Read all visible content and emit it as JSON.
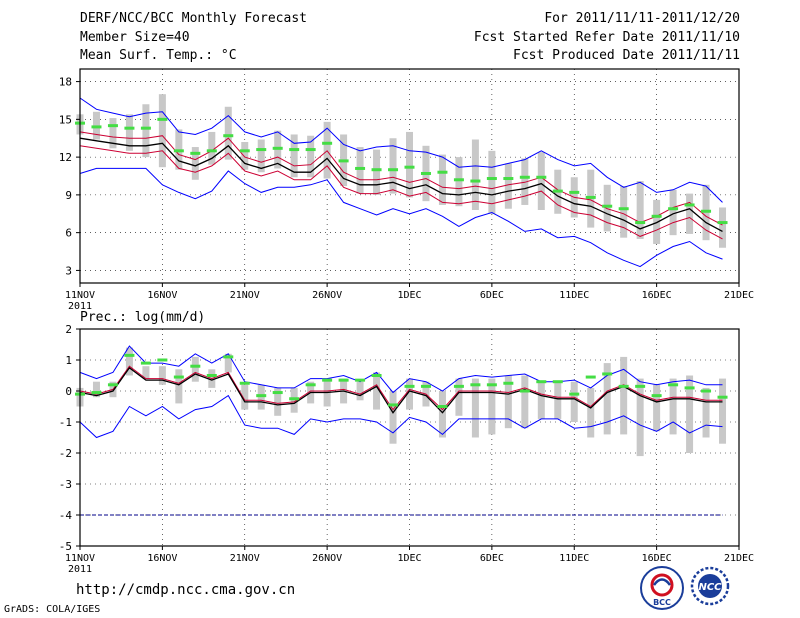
{
  "header": {
    "title": "DERF/NCC/BCC Monthly Forecast",
    "member_size": "Member Size=40",
    "variable": "Mean Surf. Temp.: °C",
    "period": "For 2011/11/11-2011/12/20",
    "start_date": "Fcst Started Refer Date 2011/11/10",
    "produced_date": "Fcst Produced Date 2011/11/11"
  },
  "footer": {
    "url": "http://cmdp.ncc.cma.gov.cn",
    "grads_credit": "GrADS: COLA/IGES",
    "logo_left_text": "BCC",
    "logo_right_text": "NCC"
  },
  "colors": {
    "bound": "#0000ff",
    "inner": "#cc0033",
    "mean": "#000000",
    "median": "#44dd44",
    "spread": "#c8c8c8",
    "reference": "#000088"
  },
  "chart_data": [
    {
      "type": "line",
      "title": "",
      "ylabel": "Mean Surf. Temp.: °C",
      "ylim": [
        2,
        19
      ],
      "yticks": [
        3,
        6,
        9,
        12,
        15,
        18
      ],
      "xlim": [
        0,
        40
      ],
      "xticks": [
        {
          "pos": 0,
          "label": "11NOV",
          "sub": "2011"
        },
        {
          "pos": 5,
          "label": "16NOV",
          "sub": ""
        },
        {
          "pos": 10,
          "label": "21NOV",
          "sub": ""
        },
        {
          "pos": 15,
          "label": "26NOV",
          "sub": ""
        },
        {
          "pos": 20,
          "label": "1DEC",
          "sub": ""
        },
        {
          "pos": 25,
          "label": "6DEC",
          "sub": ""
        },
        {
          "pos": 30,
          "label": "11DEC",
          "sub": ""
        },
        {
          "pos": 35,
          "label": "16DEC",
          "sub": ""
        },
        {
          "pos": 40,
          "label": "21DEC",
          "sub": ""
        }
      ],
      "grid": true,
      "x": [
        0,
        1,
        2,
        3,
        4,
        5,
        6,
        7,
        8,
        9,
        10,
        11,
        12,
        13,
        14,
        15,
        16,
        17,
        18,
        19,
        20,
        21,
        22,
        23,
        24,
        25,
        26,
        27,
        28,
        29,
        30,
        31,
        32,
        33,
        34,
        35,
        36,
        37,
        38,
        39
      ],
      "series": [
        {
          "name": "max",
          "values": [
            16.7,
            15.8,
            15.5,
            15.2,
            15.5,
            15.6,
            14.0,
            13.8,
            14.3,
            15.3,
            14.0,
            13.6,
            14.0,
            13.1,
            13.2,
            14.3,
            13.0,
            12.5,
            12.8,
            12.9,
            12.5,
            12.4,
            12.0,
            11.2,
            11.3,
            11.2,
            11.5,
            11.8,
            12.5,
            11.8,
            11.3,
            11.5,
            10.4,
            9.6,
            10.0,
            9.2,
            9.4,
            10.0,
            9.7,
            8.4
          ]
        },
        {
          "name": "upper",
          "values": [
            14.0,
            13.8,
            13.6,
            13.5,
            13.5,
            13.7,
            12.2,
            11.8,
            12.5,
            13.5,
            12.0,
            11.6,
            12.0,
            11.3,
            11.4,
            12.5,
            10.8,
            10.2,
            10.2,
            10.4,
            10.0,
            10.3,
            9.6,
            9.5,
            9.7,
            9.5,
            9.8,
            10.0,
            10.4,
            9.4,
            8.8,
            8.6,
            7.9,
            7.5,
            6.8,
            7.3,
            8.0,
            8.4,
            7.3,
            6.6
          ]
        },
        {
          "name": "mean",
          "values": [
            13.5,
            13.3,
            13.1,
            12.9,
            12.9,
            13.1,
            11.7,
            11.3,
            11.9,
            12.9,
            11.5,
            11.1,
            11.5,
            10.8,
            10.8,
            11.9,
            10.3,
            9.8,
            9.8,
            10.0,
            9.5,
            9.8,
            9.1,
            9.0,
            9.2,
            9.0,
            9.3,
            9.5,
            9.9,
            8.9,
            8.3,
            8.1,
            7.5,
            7.0,
            6.3,
            6.8,
            7.5,
            7.9,
            6.8,
            6.1
          ]
        },
        {
          "name": "lower",
          "values": [
            12.9,
            12.7,
            12.5,
            12.3,
            12.3,
            12.5,
            11.1,
            10.8,
            11.3,
            12.3,
            10.9,
            10.5,
            10.9,
            10.2,
            10.2,
            11.3,
            9.6,
            9.1,
            9.1,
            9.4,
            8.9,
            9.2,
            8.4,
            8.3,
            8.5,
            8.3,
            8.6,
            8.9,
            9.3,
            8.2,
            7.6,
            7.4,
            6.8,
            6.4,
            5.7,
            6.2,
            6.8,
            7.2,
            6.2,
            5.5
          ]
        },
        {
          "name": "min",
          "values": [
            10.7,
            11.1,
            11.1,
            11.1,
            11.1,
            9.8,
            9.2,
            8.7,
            9.3,
            10.9,
            9.9,
            9.2,
            9.6,
            9.6,
            9.8,
            10.2,
            8.4,
            7.9,
            7.4,
            7.9,
            7.5,
            7.9,
            7.3,
            6.5,
            7.2,
            7.6,
            6.9,
            6.1,
            6.3,
            5.6,
            5.7,
            5.2,
            4.4,
            3.8,
            3.3,
            4.2,
            4.9,
            5.3,
            4.4,
            3.9
          ]
        }
      ],
      "median": [
        14.7,
        14.4,
        14.5,
        14.3,
        14.3,
        15.0,
        12.5,
        12.3,
        12.5,
        13.7,
        12.5,
        12.6,
        12.7,
        12.6,
        12.6,
        13.1,
        11.7,
        11.1,
        11.0,
        11.0,
        11.2,
        10.7,
        10.8,
        10.2,
        10.1,
        10.3,
        10.3,
        10.4,
        10.4,
        9.3,
        9.2,
        8.8,
        8.1,
        7.9,
        6.8,
        7.3,
        7.9,
        8.2,
        7.7,
        6.8
      ],
      "spread_low": [
        13.8,
        13.4,
        12.7,
        12.5,
        12.0,
        11.2,
        11.0,
        10.2,
        11.4,
        11.8,
        11.0,
        10.8,
        11.1,
        10.4,
        10.4,
        10.3,
        9.7,
        9.1,
        9.0,
        9.1,
        8.8,
        8.5,
        8.2,
        8.1,
        7.8,
        7.5,
        7.9,
        8.2,
        7.8,
        7.5,
        7.2,
        6.4,
        6.1,
        5.6,
        5.5,
        5.1,
        5.8,
        5.9,
        5.4,
        4.8
      ],
      "spread_high": [
        15.4,
        15.6,
        15.1,
        15.4,
        16.2,
        17.0,
        14.2,
        12.8,
        14.0,
        16.0,
        13.2,
        13.4,
        14.1,
        13.8,
        13.7,
        14.8,
        13.8,
        12.8,
        12.6,
        13.5,
        14.0,
        12.9,
        12.2,
        12.0,
        13.4,
        12.5,
        11.5,
        11.9,
        12.4,
        11.0,
        10.4,
        11.0,
        9.8,
        9.7,
        10.1,
        8.6,
        9.4,
        9.1,
        9.8,
        8.0
      ]
    },
    {
      "type": "line",
      "title": "",
      "ylabel": "Prec.: log(mm/d)",
      "ylim": [
        -5,
        2
      ],
      "yticks": [
        -5,
        -4,
        -3,
        -2,
        -1,
        0,
        1,
        2
      ],
      "xlim": [
        0,
        40
      ],
      "xticks": [
        {
          "pos": 0,
          "label": "11NOV",
          "sub": "2011"
        },
        {
          "pos": 5,
          "label": "16NOV",
          "sub": ""
        },
        {
          "pos": 10,
          "label": "21NOV",
          "sub": ""
        },
        {
          "pos": 15,
          "label": "26NOV",
          "sub": ""
        },
        {
          "pos": 20,
          "label": "1DEC",
          "sub": ""
        },
        {
          "pos": 25,
          "label": "6DEC",
          "sub": ""
        },
        {
          "pos": 30,
          "label": "11DEC",
          "sub": ""
        },
        {
          "pos": 35,
          "label": "16DEC",
          "sub": ""
        },
        {
          "pos": 40,
          "label": "21DEC",
          "sub": ""
        }
      ],
      "grid": true,
      "reference_line": -4,
      "x": [
        0,
        1,
        2,
        3,
        4,
        5,
        6,
        7,
        8,
        9,
        10,
        11,
        12,
        13,
        14,
        15,
        16,
        17,
        18,
        19,
        20,
        21,
        22,
        23,
        24,
        25,
        26,
        27,
        28,
        29,
        30,
        31,
        32,
        33,
        34,
        35,
        36,
        37,
        38,
        39
      ],
      "series": [
        {
          "name": "max",
          "values": [
            0.6,
            0.4,
            0.6,
            1.45,
            0.9,
            0.9,
            0.8,
            1.2,
            0.9,
            1.2,
            0.3,
            0.2,
            0.1,
            0.1,
            0.4,
            0.4,
            0.5,
            0.3,
            0.6,
            -0.05,
            0.4,
            0.3,
            0.0,
            0.4,
            0.5,
            0.45,
            0.5,
            0.55,
            0.3,
            0.3,
            0.35,
            0.1,
            0.5,
            0.7,
            0.3,
            0.2,
            0.3,
            0.35,
            0.2,
            0.2
          ]
        },
        {
          "name": "upper",
          "values": [
            0.0,
            -0.1,
            0.05,
            0.8,
            0.4,
            0.4,
            0.25,
            0.6,
            0.4,
            0.6,
            -0.3,
            -0.3,
            -0.4,
            -0.35,
            0.0,
            0.0,
            0.05,
            -0.1,
            0.2,
            -0.6,
            0.05,
            -0.1,
            -0.6,
            0.0,
            0.0,
            0.0,
            -0.05,
            0.1,
            -0.1,
            -0.2,
            -0.2,
            -0.5,
            0.0,
            0.2,
            -0.1,
            -0.3,
            -0.2,
            -0.2,
            -0.3,
            -0.3
          ]
        },
        {
          "name": "mean",
          "values": [
            -0.05,
            -0.15,
            0.0,
            0.75,
            0.35,
            0.35,
            0.2,
            0.55,
            0.35,
            0.55,
            -0.35,
            -0.35,
            -0.45,
            -0.4,
            -0.05,
            -0.05,
            0.0,
            -0.15,
            0.15,
            -0.7,
            0.0,
            -0.15,
            -0.7,
            -0.05,
            -0.05,
            -0.05,
            -0.1,
            0.05,
            -0.15,
            -0.25,
            -0.25,
            -0.55,
            -0.05,
            0.15,
            -0.15,
            -0.35,
            -0.25,
            -0.25,
            -0.35,
            -0.35
          ]
        },
        {
          "name": "min",
          "values": [
            -1.0,
            -1.5,
            -1.3,
            -0.5,
            -0.8,
            -0.5,
            -0.9,
            -0.6,
            -0.5,
            -0.15,
            -1.1,
            -1.2,
            -1.2,
            -1.4,
            -0.9,
            -1.0,
            -0.9,
            -0.9,
            -1.0,
            -1.35,
            -0.85,
            -1.0,
            -1.4,
            -0.9,
            -0.9,
            -0.9,
            -0.9,
            -1.2,
            -0.9,
            -0.9,
            -1.2,
            -1.15,
            -1.0,
            -0.8,
            -1.1,
            -1.3,
            -1.0,
            -1.35,
            -1.1,
            -1.15
          ]
        }
      ],
      "median": [
        -0.1,
        -0.05,
        0.2,
        1.15,
        0.9,
        1.0,
        0.45,
        0.8,
        0.5,
        1.1,
        0.25,
        -0.15,
        -0.05,
        -0.25,
        0.2,
        0.35,
        0.35,
        0.35,
        0.5,
        -0.45,
        0.15,
        0.15,
        -0.5,
        0.15,
        0.2,
        0.2,
        0.25,
        0.0,
        0.3,
        0.3,
        -0.1,
        0.45,
        0.55,
        0.15,
        0.15,
        -0.15,
        0.2,
        0.1,
        0.0,
        -0.2
      ],
      "spread_low": [
        -0.5,
        -0.2,
        -0.2,
        0.5,
        0.4,
        0.2,
        -0.4,
        0.3,
        0.1,
        0.6,
        -0.6,
        -0.6,
        -0.8,
        -0.7,
        -0.4,
        -0.5,
        -0.4,
        -0.3,
        -0.6,
        -1.7,
        -0.6,
        -0.5,
        -1.5,
        -0.8,
        -1.5,
        -1.4,
        -1.2,
        -1.2,
        -0.9,
        -0.9,
        -1.0,
        -1.5,
        -1.4,
        -1.4,
        -2.1,
        -1.3,
        -1.4,
        -2.0,
        -1.5,
        -1.7
      ],
      "spread_high": [
        0.1,
        0.3,
        0.3,
        1.4,
        0.8,
        0.8,
        0.7,
        1.1,
        0.7,
        1.2,
        0.2,
        0.2,
        0.1,
        0.1,
        0.3,
        0.4,
        0.4,
        0.3,
        0.6,
        0.0,
        0.4,
        0.3,
        0.0,
        0.4,
        0.4,
        0.4,
        0.5,
        0.5,
        0.3,
        0.3,
        0.3,
        0.1,
        0.9,
        1.1,
        0.4,
        0.2,
        0.4,
        0.5,
        0.1,
        0.4
      ]
    }
  ]
}
